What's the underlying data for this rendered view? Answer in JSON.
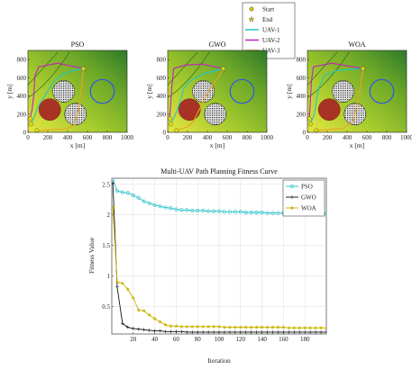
{
  "legend_top": {
    "entries": [
      {
        "label": "Start",
        "marker": "circle",
        "color": "#d4c400"
      },
      {
        "label": "End",
        "marker": "star",
        "color": "#d4c400"
      },
      {
        "label": "UAV-1",
        "marker": "line",
        "color": "#1ec8c8"
      },
      {
        "label": "UAV-2",
        "marker": "line",
        "color": "#c020c0"
      },
      {
        "label": "UAV-3",
        "marker": "line",
        "color": "#f0a020"
      }
    ]
  },
  "maps": [
    {
      "title": "PSO",
      "xlabel": "x [m]",
      "ylabel": "y [m]",
      "xticks": [
        "0",
        "200",
        "400",
        "600",
        "800",
        "1000"
      ],
      "yticks": [
        "0",
        "200",
        "400",
        "600",
        "800"
      ],
      "xlim": [
        0,
        1000
      ],
      "ylim": [
        0,
        900
      ],
      "paths": {
        "uav1": [
          [
            30,
            90
          ],
          [
            60,
            160
          ],
          [
            100,
            280
          ],
          [
            180,
            420
          ],
          [
            260,
            560
          ],
          [
            350,
            640
          ],
          [
            450,
            680
          ],
          [
            560,
            700
          ]
        ],
        "uav2": [
          [
            20,
            150
          ],
          [
            40,
            240
          ],
          [
            60,
            420
          ],
          [
            70,
            620
          ],
          [
            110,
            720
          ],
          [
            300,
            760
          ],
          [
            560,
            700
          ]
        ],
        "uav3": [
          [
            90,
            20
          ],
          [
            250,
            30
          ],
          [
            380,
            35
          ],
          [
            470,
            80
          ],
          [
            520,
            300
          ],
          [
            560,
            700
          ]
        ]
      }
    },
    {
      "title": "GWO",
      "xlabel": "x [m]",
      "ylabel": "y [m]",
      "xticks": [
        "0",
        "200",
        "400",
        "600",
        "800",
        "1000"
      ],
      "yticks": [
        "0",
        "200",
        "400",
        "600",
        "800"
      ],
      "xlim": [
        0,
        1000
      ],
      "ylim": [
        0,
        900
      ],
      "paths": {
        "uav1": [
          [
            30,
            90
          ],
          [
            80,
            200
          ],
          [
            130,
            350
          ],
          [
            160,
            480
          ],
          [
            220,
            560
          ],
          [
            350,
            640
          ],
          [
            560,
            700
          ]
        ],
        "uav2": [
          [
            20,
            150
          ],
          [
            30,
            300
          ],
          [
            40,
            480
          ],
          [
            60,
            700
          ],
          [
            180,
            740
          ],
          [
            350,
            750
          ],
          [
            560,
            700
          ]
        ],
        "uav3": [
          [
            90,
            20
          ],
          [
            200,
            60
          ],
          [
            260,
            120
          ],
          [
            340,
            300
          ],
          [
            430,
            480
          ],
          [
            520,
            620
          ],
          [
            560,
            700
          ]
        ]
      }
    },
    {
      "title": "WOA",
      "xlabel": "x [m]",
      "ylabel": "y [m]",
      "xticks": [
        "0",
        "200",
        "400",
        "600",
        "800",
        "1000"
      ],
      "yticks": [
        "0",
        "200",
        "400",
        "600",
        "800"
      ],
      "xlim": [
        0,
        1000
      ],
      "ylim": [
        0,
        900
      ],
      "paths": {
        "uav1": [
          [
            30,
            90
          ],
          [
            70,
            200
          ],
          [
            90,
            350
          ],
          [
            120,
            500
          ],
          [
            170,
            620
          ],
          [
            300,
            680
          ],
          [
            560,
            700
          ]
        ],
        "uav2": [
          [
            20,
            150
          ],
          [
            30,
            350
          ],
          [
            40,
            560
          ],
          [
            60,
            720
          ],
          [
            250,
            760
          ],
          [
            560,
            700
          ]
        ],
        "uav3": [
          [
            90,
            20
          ],
          [
            200,
            30
          ],
          [
            350,
            40
          ],
          [
            460,
            120
          ],
          [
            520,
            400
          ],
          [
            560,
            700
          ]
        ]
      }
    }
  ],
  "map_features": {
    "start": [
      [
        30,
        90
      ],
      [
        20,
        150
      ],
      [
        90,
        20
      ]
    ],
    "end": [
      560,
      700
    ],
    "red_circle": {
      "cx": 220,
      "cy": 250,
      "r": 110
    },
    "hatched_circles": [
      {
        "cx": 360,
        "cy": 450,
        "r": 110
      },
      {
        "cx": 480,
        "cy": 200,
        "r": 110
      }
    ],
    "blue_circle": {
      "cx": 750,
      "cy": 450,
      "r": 120
    }
  },
  "chart_data": {
    "type": "line",
    "title": "Multi-UAV Path Planning Fitness Curve",
    "xlabel": "Iteration",
    "ylabel": "Fitness Value",
    "xlim": [
      0,
      200
    ],
    "ylim": [
      0.05,
      2.6
    ],
    "xticks": [
      "20",
      "40",
      "60",
      "80",
      "100",
      "120",
      "140",
      "160",
      "180"
    ],
    "yticks": [
      "0.5",
      "1",
      "1.5",
      "2",
      "2.5"
    ],
    "grid": true,
    "legend_position": "top-right",
    "series": [
      {
        "name": "PSO",
        "color": "#20c0c8",
        "marker": "circle",
        "x": [
          1,
          5,
          10,
          15,
          20,
          25,
          30,
          35,
          40,
          45,
          50,
          55,
          60,
          65,
          70,
          75,
          80,
          85,
          90,
          95,
          100,
          105,
          110,
          115,
          120,
          125,
          130,
          135,
          140,
          145,
          150,
          155,
          160,
          165,
          170,
          175,
          180,
          185,
          190,
          195,
          200
        ],
        "y": [
          2.58,
          2.39,
          2.37,
          2.36,
          2.32,
          2.28,
          2.22,
          2.19,
          2.16,
          2.14,
          2.12,
          2.11,
          2.09,
          2.08,
          2.08,
          2.07,
          2.07,
          2.07,
          2.06,
          2.06,
          2.06,
          2.05,
          2.05,
          2.05,
          2.05,
          2.04,
          2.04,
          2.04,
          2.04,
          2.03,
          2.03,
          2.03,
          2.03,
          2.03,
          2.03,
          2.03,
          2.03,
          2.02,
          2.02,
          2.02,
          2.02
        ]
      },
      {
        "name": "GWO",
        "color": "#111111",
        "marker": "plus",
        "x": [
          1,
          5,
          10,
          15,
          20,
          25,
          30,
          35,
          40,
          45,
          50,
          55,
          60,
          65,
          70,
          75,
          80,
          85,
          90,
          95,
          100,
          105,
          110,
          115,
          120,
          125,
          130,
          135,
          140,
          145,
          150,
          155,
          160,
          165,
          170,
          175,
          180,
          185,
          190,
          195,
          200
        ],
        "y": [
          2.52,
          0.82,
          0.22,
          0.16,
          0.14,
          0.13,
          0.12,
          0.11,
          0.1,
          0.1,
          0.09,
          0.09,
          0.09,
          0.09,
          0.08,
          0.08,
          0.08,
          0.08,
          0.08,
          0.08,
          0.08,
          0.08,
          0.08,
          0.08,
          0.08,
          0.08,
          0.08,
          0.08,
          0.08,
          0.08,
          0.08,
          0.08,
          0.08,
          0.08,
          0.08,
          0.08,
          0.08,
          0.08,
          0.08,
          0.08,
          0.08
        ]
      },
      {
        "name": "WOA",
        "color": "#c8b400",
        "marker": "star",
        "x": [
          1,
          5,
          10,
          15,
          20,
          25,
          30,
          35,
          40,
          45,
          50,
          55,
          60,
          65,
          70,
          75,
          80,
          85,
          90,
          95,
          100,
          105,
          110,
          115,
          120,
          125,
          130,
          135,
          140,
          145,
          150,
          155,
          160,
          165,
          170,
          175,
          180,
          185,
          190,
          195,
          200
        ],
        "y": [
          2.12,
          0.9,
          0.88,
          0.78,
          0.64,
          0.44,
          0.43,
          0.36,
          0.3,
          0.25,
          0.2,
          0.18,
          0.18,
          0.17,
          0.17,
          0.17,
          0.17,
          0.17,
          0.17,
          0.17,
          0.17,
          0.16,
          0.16,
          0.16,
          0.16,
          0.16,
          0.16,
          0.16,
          0.16,
          0.16,
          0.16,
          0.16,
          0.16,
          0.15,
          0.15,
          0.15,
          0.15,
          0.15,
          0.15,
          0.15,
          0.15
        ]
      }
    ]
  }
}
